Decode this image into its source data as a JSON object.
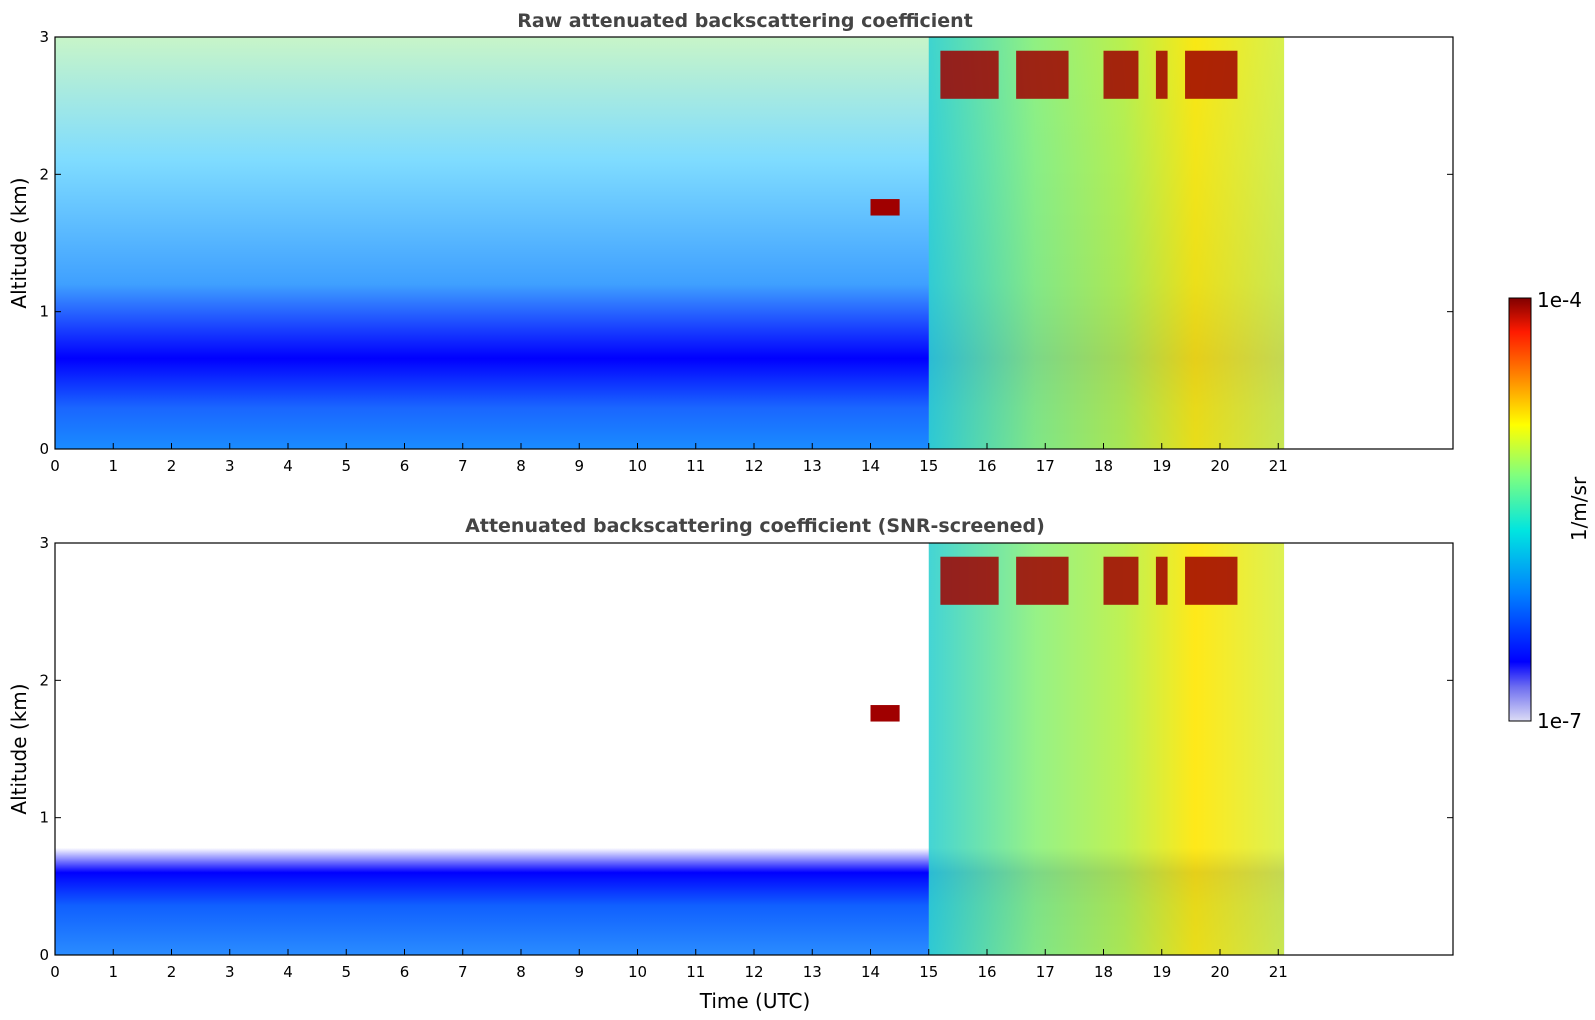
{
  "chart_data": [
    {
      "type": "heatmap",
      "title": "Raw attenuated backscattering coefficient",
      "xlabel": "",
      "ylabel": "Altitude (km)",
      "xlim": [
        0,
        24
      ],
      "ylim": [
        0,
        3
      ],
      "xticks": [
        "0",
        "1",
        "2",
        "3",
        "4",
        "5",
        "6",
        "7",
        "8",
        "9",
        "10",
        "11",
        "12",
        "13",
        "14",
        "15",
        "16",
        "17",
        "18",
        "19",
        "20",
        "21"
      ],
      "yticks": [
        "0",
        "1",
        "2",
        "3"
      ],
      "data_end_hour": 21.1,
      "colorbar_scale": "log",
      "grid": false
    },
    {
      "type": "heatmap",
      "title": "Attenuated backscattering coefficient (SNR-screened)",
      "xlabel": "Time (UTC)",
      "ylabel": "Altitude (km)",
      "xlim": [
        0,
        24
      ],
      "ylim": [
        0,
        3
      ],
      "xticks": [
        "0",
        "1",
        "2",
        "3",
        "4",
        "5",
        "6",
        "7",
        "8",
        "9",
        "10",
        "11",
        "12",
        "13",
        "14",
        "15",
        "16",
        "17",
        "18",
        "19",
        "20",
        "21"
      ],
      "yticks": [
        "0",
        "1",
        "2",
        "3"
      ],
      "data_end_hour": 21.1,
      "colorbar_scale": "log",
      "grid": false
    }
  ],
  "colorbar": {
    "label": "1/m/sr",
    "max_label": "1e-4",
    "min_label": "1e-7",
    "colormap": "jet",
    "scale": "log"
  }
}
